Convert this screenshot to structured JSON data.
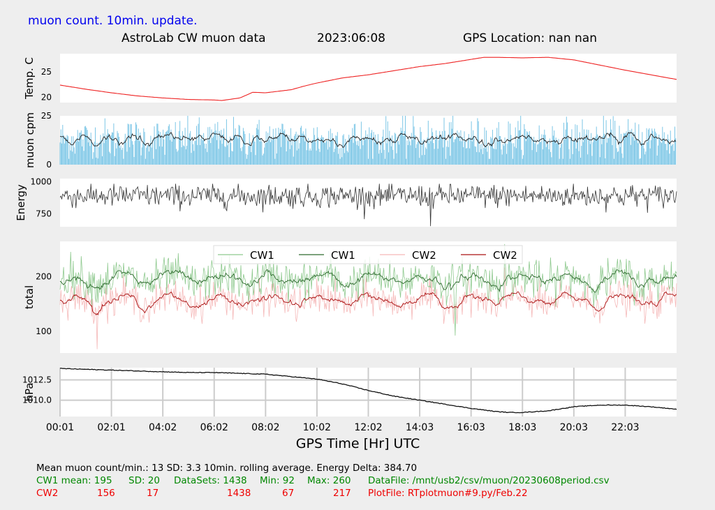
{
  "header": {
    "update_note": "muon count.  10min. update.",
    "title": "AstroLab CW muon data",
    "date": "2023:06:08",
    "gps_location": "GPS Location: nan   nan"
  },
  "chart_data": [
    {
      "type": "line",
      "ylabel": "Temp. C",
      "yticks": [
        20,
        25
      ],
      "ylim": [
        19,
        28.5
      ],
      "xlim": [
        0,
        24
      ],
      "series": [
        {
          "color": "#ee2222",
          "x": [
            0,
            1,
            2,
            3,
            4,
            5,
            6,
            6.3,
            7,
            7.5,
            8,
            9,
            9.5,
            10,
            11,
            12,
            13,
            14,
            15,
            16,
            16.5,
            17,
            18,
            19,
            20,
            21,
            22,
            23,
            24
          ],
          "y": [
            22.4,
            21.6,
            20.9,
            20.3,
            19.9,
            19.6,
            19.5,
            19.4,
            19.9,
            21.0,
            20.9,
            21.5,
            22.2,
            22.8,
            23.8,
            24.4,
            25.2,
            26.0,
            26.6,
            27.4,
            27.8,
            27.8,
            27.7,
            27.8,
            27.3,
            26.3,
            25.3,
            24.4,
            23.5
          ]
        }
      ]
    },
    {
      "type": "bar",
      "ylabel": "muon cpm",
      "yticks": [
        0,
        25
      ],
      "ylim": [
        0,
        25
      ],
      "xlim": [
        0,
        24
      ],
      "mean": 13,
      "sd": 3.3,
      "series": [
        {
          "name": "counts per minute",
          "color": "#7cc6e6"
        },
        {
          "name": "10min. rolling average",
          "color": "#222222"
        }
      ]
    },
    {
      "type": "line",
      "ylabel": "Energy",
      "yticks": [
        750,
        1000
      ],
      "ylim": [
        650,
        1025
      ],
      "xlim": [
        0,
        24
      ],
      "series": [
        {
          "color": "#333333",
          "mean": 890,
          "sd": 45,
          "min": 655,
          "max": 985
        }
      ]
    },
    {
      "type": "line",
      "ylabel": "total",
      "yticks": [
        100,
        200
      ],
      "ylim": [
        60,
        265
      ],
      "xlim": [
        0,
        24
      ],
      "legend": [
        "CW1",
        "CW1",
        "CW2",
        "CW2"
      ],
      "legend_position": "top-center",
      "series": [
        {
          "name": "CW1",
          "color": "#8ec98e",
          "mean": 195,
          "sd": 20,
          "min": 92,
          "max": 260
        },
        {
          "name": "CW1",
          "color": "#2e6b2e"
        },
        {
          "name": "CW2",
          "color": "#f5b8b8",
          "mean": 156,
          "sd": 17,
          "min": 67,
          "max": 217
        },
        {
          "name": "CW2",
          "color": "#aa1111"
        }
      ]
    },
    {
      "type": "line",
      "ylabel": "hPa",
      "yticks": [
        1010.0,
        1012.5
      ],
      "ylim": [
        1008.0,
        1014.0
      ],
      "xlim": [
        0,
        24
      ],
      "grid": true,
      "series": [
        {
          "color": "#111111",
          "x": [
            0,
            1,
            2,
            3,
            4,
            5,
            6,
            7,
            8,
            9,
            10,
            11,
            12,
            13,
            14,
            15,
            16,
            17,
            17.5,
            18,
            19,
            20,
            21,
            22,
            23,
            24
          ],
          "y": [
            1013.9,
            1013.8,
            1013.7,
            1013.6,
            1013.5,
            1013.4,
            1013.4,
            1013.3,
            1013.2,
            1012.9,
            1012.6,
            1012.0,
            1011.2,
            1010.5,
            1010.0,
            1009.5,
            1009.0,
            1008.6,
            1008.5,
            1008.5,
            1008.7,
            1009.2,
            1009.4,
            1009.4,
            1009.2,
            1008.9
          ]
        }
      ]
    }
  ],
  "x_axis": {
    "label": "GPS Time  [Hr] UTC",
    "ticks": [
      "00:01",
      "02:01",
      "04:02",
      "06:02",
      "08:02",
      "10:02",
      "12:02",
      "14:03",
      "16:03",
      "18:03",
      "20:03",
      "22:03"
    ],
    "tick_hours": [
      0,
      2,
      4,
      6,
      8,
      10,
      12,
      14,
      16,
      18,
      20,
      22
    ]
  },
  "footer": {
    "line1": "Mean muon count/min.: 13  SD: 3.3   10min. rolling average.    Energy Delta:  384.70",
    "cw1": {
      "label": "CW1 mean: 195",
      "sd": "SD: 20",
      "datasets": "DataSets: 1438",
      "min": "Min: 92",
      "max": "Max: 260",
      "file": "DataFile: /mnt/usb2/csv/muon/20230608period.csv"
    },
    "cw2": {
      "label": "CW2",
      "mean": "156",
      "sd": "17",
      "datasets": "1438",
      "min": "67",
      "max": "217",
      "file": "PlotFile: RTplotmuon#9.py/Feb.22"
    }
  },
  "colors": {
    "background": "#eeeeee",
    "panel": "#ffffff",
    "cw1": "#008800",
    "cw2": "#ee0000",
    "title_blue": "#0000ee"
  }
}
